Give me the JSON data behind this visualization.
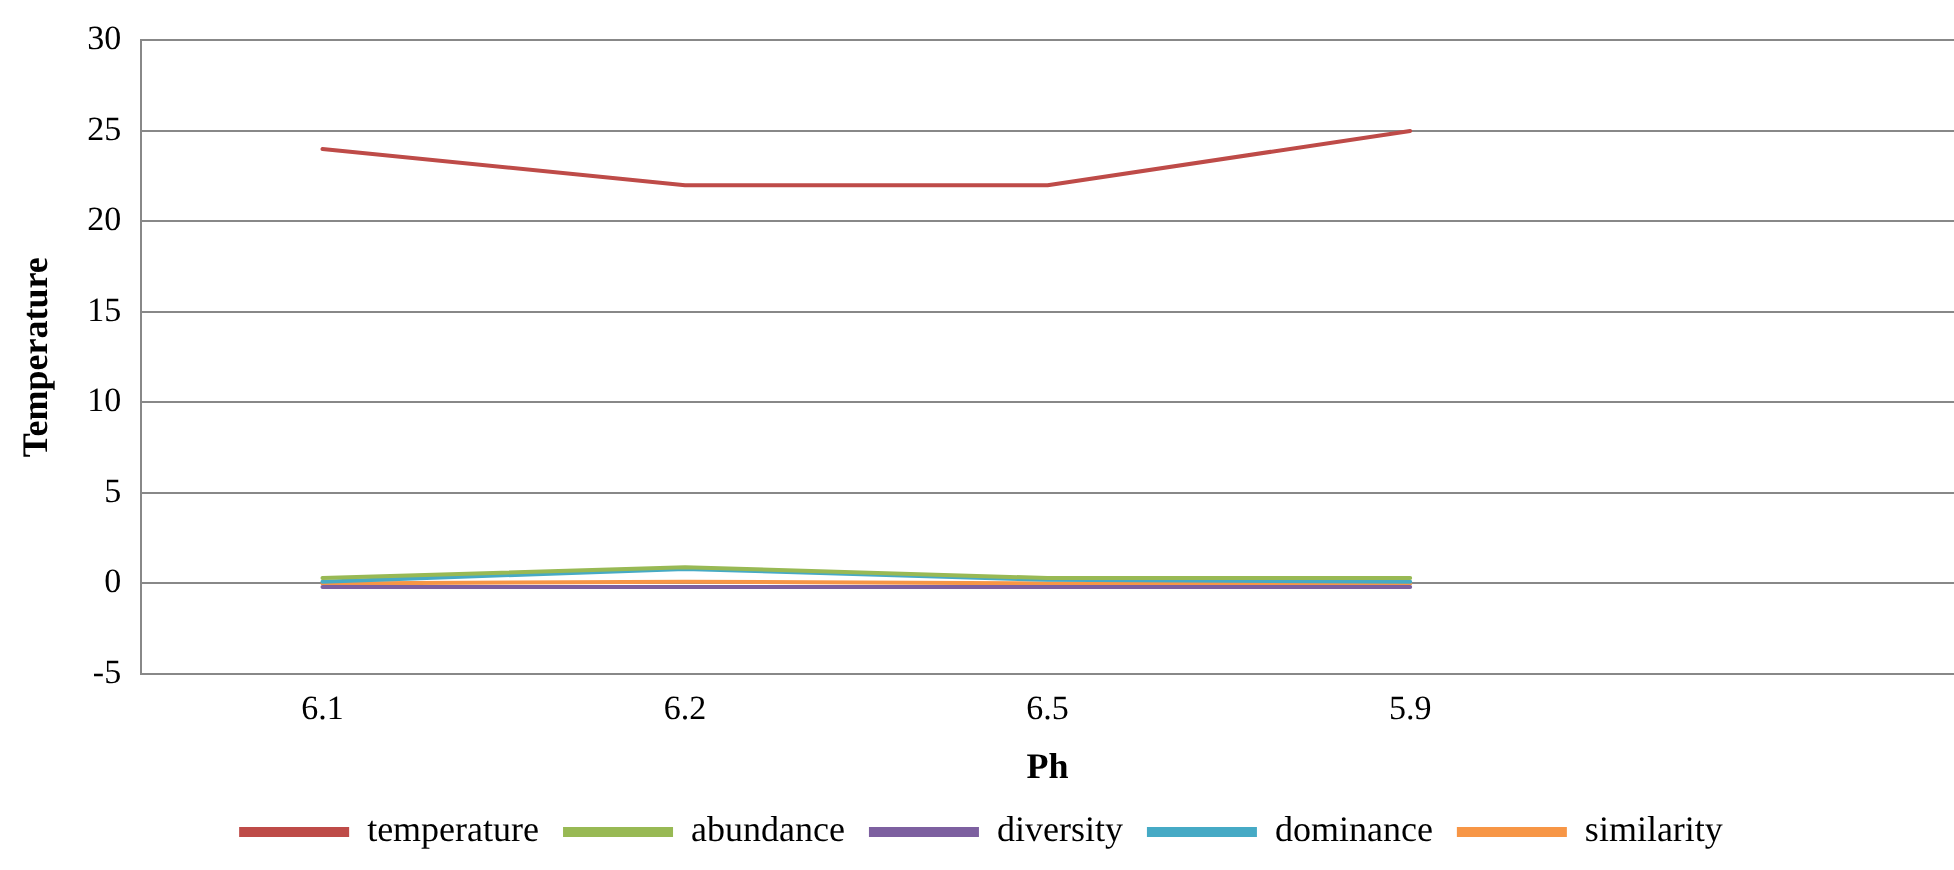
{
  "chart_data": {
    "type": "line",
    "xlabel": "Ph",
    "ylabel": "Temperature",
    "categories": [
      "6.1",
      "6.2",
      "6.5",
      "5.9",
      null
    ],
    "series": [
      {
        "name": "temperature",
        "color": "#be4b48",
        "values": [
          24,
          22,
          22,
          25,
          null
        ]
      },
      {
        "name": "abundance",
        "color": "#98b954",
        "values": [
          0.3,
          0.9,
          0.3,
          0.3,
          null
        ]
      },
      {
        "name": "diversity",
        "color": "#7d60a0",
        "values": [
          -0.2,
          -0.2,
          -0.2,
          -0.2,
          null
        ]
      },
      {
        "name": "dominance",
        "color": "#46aac5",
        "values": [
          0.1,
          0.8,
          0.2,
          0.1,
          null
        ]
      },
      {
        "name": "similarity",
        "color": "#f79646",
        "values": [
          0,
          0.1,
          0,
          0,
          null
        ]
      }
    ],
    "ylim": [
      -5,
      30
    ],
    "yticks": [
      -5,
      0,
      5,
      10,
      15,
      20,
      25,
      30
    ],
    "grid": "y",
    "legend": "bottom",
    "marker": "none",
    "line_style": "solid"
  }
}
